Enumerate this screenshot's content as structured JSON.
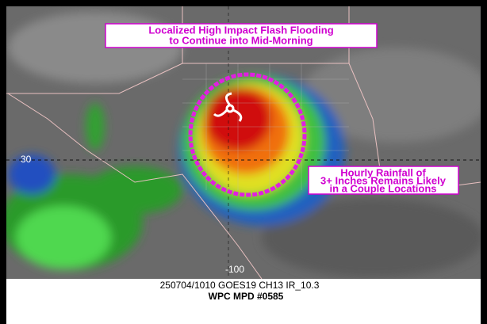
{
  "title_box": {
    "lines": [
      "Localized High Impact Flash Flooding",
      "to Continue into Mid-Morning"
    ]
  },
  "rainfall_box": {
    "lines": [
      "Hourly Rainfall of",
      "3+ Inches Remains Likely",
      "in a Couple Locations"
    ]
  },
  "map_labels": {
    "latitude": "30",
    "longitude": "-100"
  },
  "footer": {
    "product": "250704/1010 GOES19 CH13 IR_10.3",
    "mpd": "WPC MPD #0585"
  }
}
